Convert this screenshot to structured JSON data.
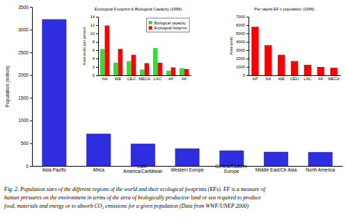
{
  "chart_data": [
    {
      "type": "bar",
      "y_label": "Population (million)",
      "categories": [
        "Asia-Pacific",
        "Africa",
        "Latin America/Caribbean",
        "Western Europe",
        "Central/Eastern Europe",
        "Middle East/Ctr Asia",
        "North America"
      ],
      "values": [
        3230,
        710,
        490,
        385,
        340,
        310,
        305
      ],
      "color": "#2e2ee0",
      "ylim": [
        0,
        3500
      ],
      "yticks": [
        0,
        500,
        1000,
        1500,
        2000,
        2500,
        3000,
        3500
      ]
    },
    {
      "type": "bar",
      "title": "Ecological Footprint & Biological Capacity (1996)",
      "y_label": "Area units per person",
      "categories": [
        "NA",
        "WE",
        "CEU",
        "MECA",
        "LAC",
        "AP",
        "AF"
      ],
      "series": [
        {
          "name": "Biological capacity",
          "color": "#3ad83a",
          "values": [
            6.3,
            3.0,
            3.4,
            1.4,
            6.5,
            1.1,
            1.7
          ]
        },
        {
          "name": "Ecological footprint",
          "color": "#ff0000",
          "values": [
            11.9,
            6.3,
            4.9,
            2.9,
            3.0,
            1.9,
            1.5
          ]
        }
      ],
      "ylim": [
        0,
        14
      ],
      "yticks": [
        0,
        2,
        4,
        6,
        8,
        10,
        12,
        14
      ],
      "legend": "upper right"
    },
    {
      "type": "bar",
      "title": "Per capita EF x population (1996)",
      "y_label": "Area units",
      "categories": [
        "AP",
        "NA",
        "WE",
        "CEU",
        "LAC",
        "AF",
        "MECA"
      ],
      "values": [
        5800,
        3600,
        2450,
        1700,
        1250,
        1000,
        900
      ],
      "color": "#ff0000",
      "ylim": [
        0,
        7000
      ],
      "yticks": [
        0,
        1000,
        2000,
        3000,
        4000,
        5000,
        6000,
        7000
      ]
    }
  ],
  "caption": {
    "lines": [
      "Fig. 2.  Population sizes of the different regions of the world and their ecological footprints (EFs).  EF is a measure of",
      "human pressures on the environment in terms of the area of biologically productive land or sea required to produce",
      "food, materials and energy or to absorb CO₂ emissions for a given population (Data from WWF/UNEP 2000)"
    ]
  }
}
